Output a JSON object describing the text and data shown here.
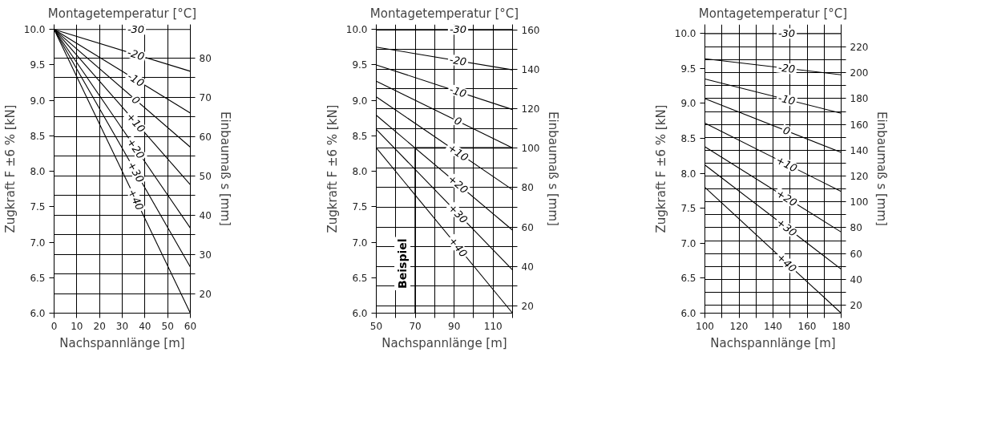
{
  "chart_data": [
    {
      "type": "line",
      "title": "Montagetemperatur [°C]",
      "xlabel": "Nachspannlänge [m]",
      "ylabel": "Zugkraft F ±6 % [kN]",
      "y2label": "Einbaumaß s [mm]",
      "xlim": [
        0,
        60
      ],
      "xticks": [
        0,
        10,
        20,
        30,
        40,
        50,
        60
      ],
      "ylim": [
        6,
        10.07
      ],
      "yticks": [
        {
          "value": 6,
          "label": "6.0"
        },
        {
          "value": 6.5,
          "label": "6.5"
        },
        {
          "value": 7,
          "label": "7.0"
        },
        {
          "value": 7.5,
          "label": "7.5"
        },
        {
          "value": 8,
          "label": "8.0"
        },
        {
          "value": 8.5,
          "label": "8.5"
        },
        {
          "value": 9,
          "label": "9.0"
        },
        {
          "value": 9.5,
          "label": "9.5"
        },
        {
          "value": 10,
          "label": "10.0"
        }
      ],
      "y2lim": [
        15,
        88.5
      ],
      "y2ticks": [
        20,
        {
          "value": 25,
          "label": null
        },
        30,
        {
          "value": 35,
          "label": null
        },
        40,
        {
          "value": 45,
          "label": null
        },
        50,
        {
          "value": 55,
          "label": null
        },
        60,
        {
          "value": 65,
          "label": null
        },
        70,
        {
          "value": 75,
          "label": null
        },
        80
      ],
      "grid": true,
      "marker": "none",
      "line_style": "solid",
      "series": [
        {
          "name": "-30",
          "color": "#000000",
          "x": [
            0,
            60
          ],
          "values": [
            10,
            10
          ]
        },
        {
          "name": "-20",
          "color": "#000000",
          "x": [
            0,
            60
          ],
          "values": [
            10,
            9.41
          ]
        },
        {
          "name": "-10",
          "color": "#000000",
          "x": [
            0,
            60
          ],
          "values": [
            10,
            8.82
          ]
        },
        {
          "name": "0",
          "color": "#000000",
          "x": [
            0,
            60
          ],
          "values": [
            10,
            8.34
          ]
        },
        {
          "name": "+10",
          "color": "#000000",
          "x": [
            0,
            60
          ],
          "values": [
            10,
            7.81
          ]
        },
        {
          "name": "+20",
          "color": "#000000",
          "x": [
            0,
            60
          ],
          "values": [
            10,
            7.2
          ]
        },
        {
          "name": "+30",
          "color": "#000000",
          "x": [
            0,
            60
          ],
          "values": [
            10,
            6.65
          ]
        },
        {
          "name": "+40",
          "color": "#000000",
          "x": [
            0,
            60
          ],
          "values": [
            10,
            6.0
          ]
        }
      ]
    },
    {
      "type": "line",
      "title": "Montagetemperatur [°C]",
      "xlabel": "Nachspannlänge [m]",
      "ylabel": "Zugkraft F ±6 % [kN]",
      "y2label": "Einbaumaß s [mm]",
      "xlim": [
        50,
        120
      ],
      "xticks": [
        50,
        {
          "value": 60,
          "label": null
        },
        70,
        {
          "value": 80,
          "label": null
        },
        90,
        {
          "value": 100,
          "label": null
        },
        110,
        {
          "value": 120,
          "label": null
        }
      ],
      "ylim": [
        6,
        10.07
      ],
      "yticks": [
        {
          "value": 6,
          "label": "6.0"
        },
        {
          "value": 6.5,
          "label": "6.5"
        },
        {
          "value": 7,
          "label": "7.0"
        },
        {
          "value": 7.5,
          "label": "7.5"
        },
        {
          "value": 8,
          "label": "8.0"
        },
        {
          "value": 8.5,
          "label": "8.5"
        },
        {
          "value": 9,
          "label": "9.0"
        },
        {
          "value": 9.5,
          "label": "9.5"
        },
        {
          "value": 10,
          "label": "10.0"
        }
      ],
      "y2lim": [
        16.3,
        162.7
      ],
      "y2ticks": [
        20,
        {
          "value": 30,
          "label": null
        },
        40,
        {
          "value": 50,
          "label": null
        },
        60,
        {
          "value": 70,
          "label": null
        },
        80,
        {
          "value": 90,
          "label": null
        },
        100,
        {
          "value": 110,
          "label": null
        },
        120,
        {
          "value": 130,
          "label": null
        },
        140,
        {
          "value": 150,
          "label": null
        },
        160
      ],
      "grid": true,
      "marker": "none",
      "line_style": "solid",
      "series": [
        {
          "name": "-30",
          "color": "#000000",
          "x": [
            50,
            120
          ],
          "values": [
            10,
            10
          ]
        },
        {
          "name": "-20",
          "color": "#000000",
          "x": [
            50,
            120
          ],
          "values": [
            9.75,
            9.43
          ]
        },
        {
          "name": "-10",
          "color": "#000000",
          "x": [
            50,
            120
          ],
          "values": [
            9.5,
            8.87
          ]
        },
        {
          "name": "0",
          "color": "#000000",
          "x": [
            50,
            120
          ],
          "values": [
            9.27,
            8.33
          ]
        },
        {
          "name": "+10",
          "color": "#000000",
          "x": [
            50,
            120
          ],
          "values": [
            9.05,
            7.74
          ]
        },
        {
          "name": "+20",
          "color": "#000000",
          "x": [
            50,
            120
          ],
          "values": [
            8.79,
            7.17
          ]
        },
        {
          "name": "+30",
          "color": "#000000",
          "x": [
            50,
            120
          ],
          "values": [
            8.59,
            6.61
          ]
        },
        {
          "name": "+40",
          "color": "#000000",
          "x": [
            50,
            120
          ],
          "values": [
            8.33,
            6.0
          ]
        },
        {
          "name": "Beispiel",
          "color": "#000000",
          "x": [
            70,
            70,
            120
          ],
          "values": [
            6.0,
            8.33,
            8.33
          ]
        }
      ]
    },
    {
      "type": "line",
      "title": "Montagetemperatur [°C]",
      "xlabel": "Nachspannlänge [m]",
      "ylabel": "Zugkraft F ±6 % [kN]",
      "y2label": "Einbaumaß s [mm]",
      "xlim": [
        100,
        180
      ],
      "xticks": [
        100,
        {
          "value": 110,
          "label": null
        },
        120,
        {
          "value": 130,
          "label": null
        },
        140,
        {
          "value": 150,
          "label": null
        },
        160,
        {
          "value": 170,
          "label": null
        },
        180
      ],
      "ylim": [
        6,
        10.13
      ],
      "yticks": [
        {
          "value": 6,
          "label": "6.0"
        },
        {
          "value": 6.5,
          "label": "6.5"
        },
        {
          "value": 7,
          "label": "7.0"
        },
        {
          "value": 7.5,
          "label": "7.5"
        },
        {
          "value": 8,
          "label": "8.0"
        },
        {
          "value": 8.5,
          "label": "8.5"
        },
        {
          "value": 9,
          "label": "9.0"
        },
        {
          "value": 9.5,
          "label": "9.5"
        },
        {
          "value": 10,
          "label": "10.0"
        }
      ],
      "y2lim": [
        13.8,
        237.4
      ],
      "y2ticks": [
        20,
        {
          "value": 30,
          "label": null
        },
        40,
        {
          "value": 50,
          "label": null
        },
        60,
        {
          "value": 70,
          "label": null
        },
        80,
        {
          "value": 90,
          "label": null
        },
        100,
        {
          "value": 110,
          "label": null
        },
        120,
        {
          "value": 130,
          "label": null
        },
        140,
        {
          "value": 150,
          "label": null
        },
        160,
        {
          "value": 170,
          "label": null
        },
        180,
        {
          "value": 190,
          "label": null
        },
        200,
        {
          "value": 210,
          "label": null
        },
        220
      ],
      "grid": true,
      "marker": "none",
      "line_style": "solid",
      "series": [
        {
          "name": "-30",
          "color": "#000000",
          "x": [
            100,
            180
          ],
          "values": [
            10,
            10
          ]
        },
        {
          "name": "-20",
          "color": "#000000",
          "x": [
            100,
            180
          ],
          "values": [
            9.64,
            9.41
          ]
        },
        {
          "name": "-10",
          "color": "#000000",
          "x": [
            100,
            180
          ],
          "values": [
            9.35,
            8.86
          ]
        },
        {
          "name": "0",
          "color": "#000000",
          "x": [
            100,
            180
          ],
          "values": [
            9.07,
            8.3
          ]
        },
        {
          "name": "+10",
          "color": "#000000",
          "x": [
            100,
            180
          ],
          "values": [
            8.72,
            7.74
          ]
        },
        {
          "name": "+20",
          "color": "#000000",
          "x": [
            100,
            180
          ],
          "values": [
            8.38,
            7.16
          ]
        },
        {
          "name": "+30",
          "color": "#000000",
          "x": [
            100,
            180
          ],
          "values": [
            8.12,
            6.63
          ]
        },
        {
          "name": "+40",
          "color": "#000000",
          "x": [
            100,
            180
          ],
          "values": [
            7.8,
            6.0
          ]
        }
      ]
    }
  ]
}
